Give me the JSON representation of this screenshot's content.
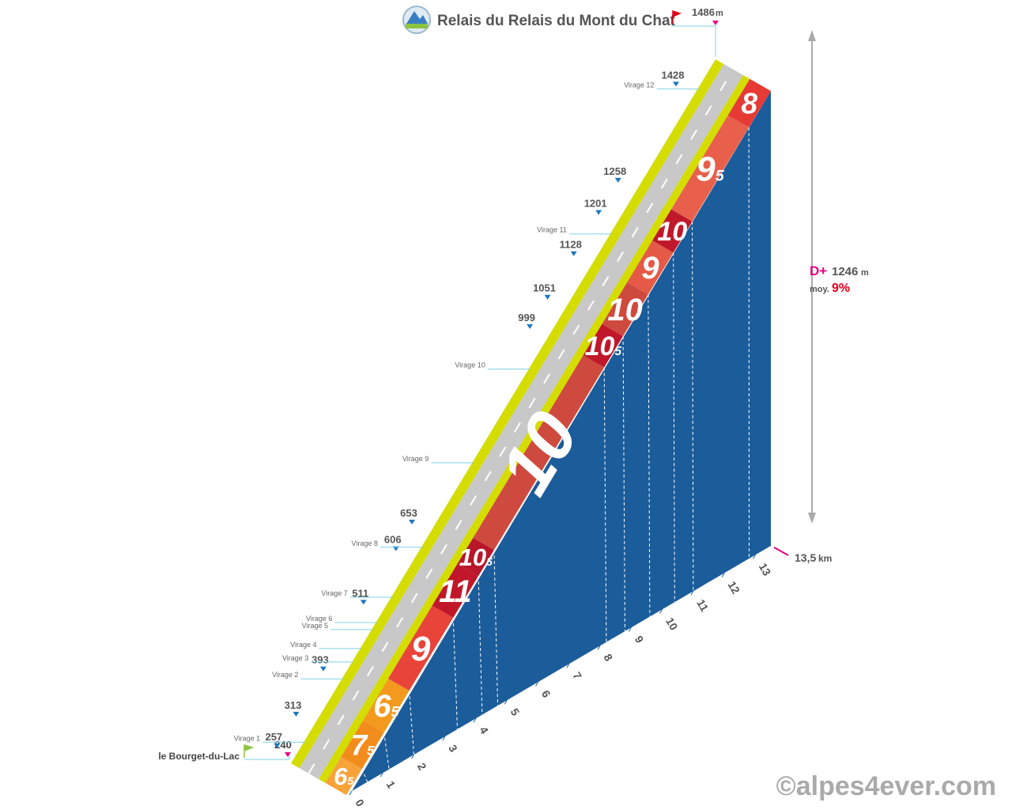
{
  "title": "Relais du Relais du Mont du Chat",
  "summit": {
    "altitude": 1486,
    "unit": "m"
  },
  "start": {
    "name": "le Bourget-du-Lac",
    "altitude": 240
  },
  "elevation_gain": {
    "label": "D+",
    "value": 1246,
    "unit": "m"
  },
  "average": {
    "label": "moy.",
    "value": "9%"
  },
  "distance": {
    "value": "13,5",
    "unit": "km"
  },
  "km_labels": [
    0,
    1,
    2,
    3,
    4,
    5,
    6,
    7,
    8,
    9,
    10,
    11,
    12,
    13
  ],
  "altitudes": [
    257,
    313,
    393,
    511,
    606,
    653,
    999,
    1051,
    1128,
    1201,
    1258,
    1428
  ],
  "virages": [
    "Virage 1",
    "Virage 2",
    "Virage 3",
    "Virage 4",
    "Virage 5",
    "Virage 6",
    "Virage 7",
    "Virage 8",
    "Virage 9",
    "Virage 10",
    "Virage 11",
    "Virage 12"
  ],
  "gradients": [
    {
      "whole": "6",
      "decimal": "5",
      "color": "#f7a33a"
    },
    {
      "whole": "7",
      "decimal": "5",
      "color": "#f28c1c"
    },
    {
      "whole": "6",
      "decimal": "5",
      "color": "#f39a1e"
    },
    {
      "whole": "9",
      "color": "#e8443a"
    },
    {
      "whole": "11",
      "color": "#c0182a"
    },
    {
      "whole": "10",
      "decimal": "5",
      "color": "#b8162a"
    },
    {
      "whole": "10",
      "color": "#cf4a3e"
    },
    {
      "whole": "10",
      "decimal": "5",
      "color": "#c0182a"
    },
    {
      "whole": "10",
      "color": "#cf4a3e"
    },
    {
      "whole": "9",
      "color": "#e55a46"
    },
    {
      "whole": "10",
      "color": "#c0182a"
    },
    {
      "whole": "9",
      "decimal": "5",
      "color": "#e8604c"
    },
    {
      "whole": "8",
      "color": "#e63a35"
    }
  ],
  "copyright": "©alpes4ever.com"
}
